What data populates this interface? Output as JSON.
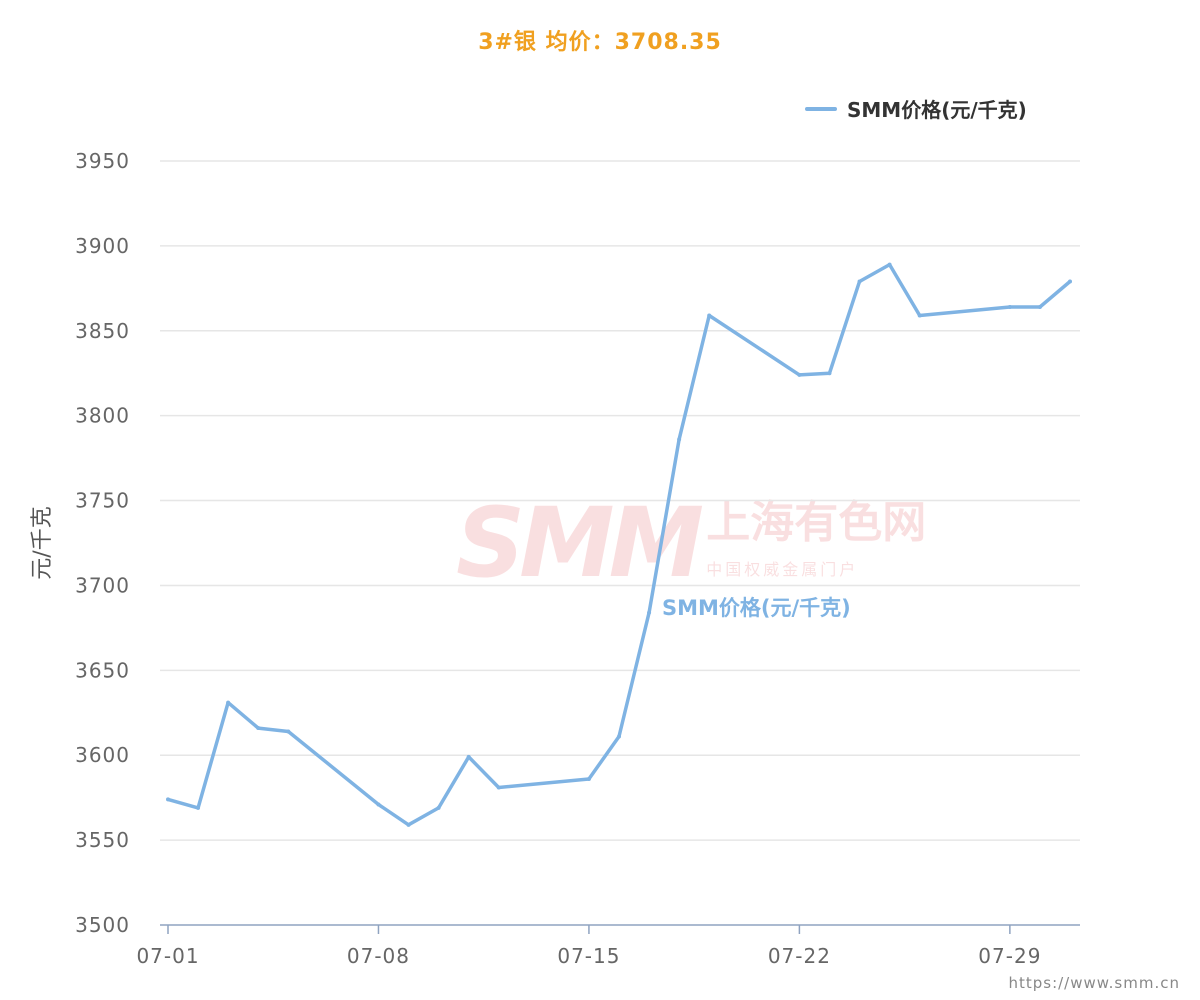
{
  "header": {
    "title": "3#银 均价：3708.35",
    "title_color": "#f0a020"
  },
  "legend": {
    "label": "SMM价格(元/千克)"
  },
  "series_label": "SMM价格(元/千克)",
  "watermark": {
    "logo": "SMM",
    "name": "上海有色网",
    "tagline": "中国权威金属门户"
  },
  "footer": {
    "url": "https://www.smm.cn"
  },
  "colors": {
    "line": "#7fb3e3",
    "grid": "#e6e6e6",
    "axis": "#8fa3c0",
    "tick_text": "#666666"
  },
  "chart_data": {
    "type": "line",
    "title": "3#银 均价：3708.35",
    "xlabel": "",
    "ylabel": "元/千克",
    "ylim": [
      3500,
      3950
    ],
    "yticks": [
      3500,
      3550,
      3600,
      3650,
      3700,
      3750,
      3800,
      3850,
      3900,
      3950
    ],
    "xticks": [
      "07-01",
      "07-08",
      "07-15",
      "07-22",
      "07-29"
    ],
    "x": [
      "07-01",
      "07-02",
      "07-03",
      "07-04",
      "07-05",
      "07-08",
      "07-09",
      "07-10",
      "07-11",
      "07-12",
      "07-15",
      "07-16",
      "07-17",
      "07-18",
      "07-19",
      "07-22",
      "07-23",
      "07-24",
      "07-25",
      "07-26",
      "07-29",
      "07-30",
      "07-31"
    ],
    "series": [
      {
        "name": "SMM价格(元/千克)",
        "values": [
          3574,
          3569,
          3631,
          3616,
          3614,
          3571,
          3559,
          3569,
          3599,
          3581,
          3586,
          3611,
          3684,
          3786,
          3859,
          3824,
          3825,
          3879,
          3889,
          3859,
          3864,
          3864,
          3879
        ]
      }
    ],
    "grid": true,
    "legend_position": "top-right"
  }
}
